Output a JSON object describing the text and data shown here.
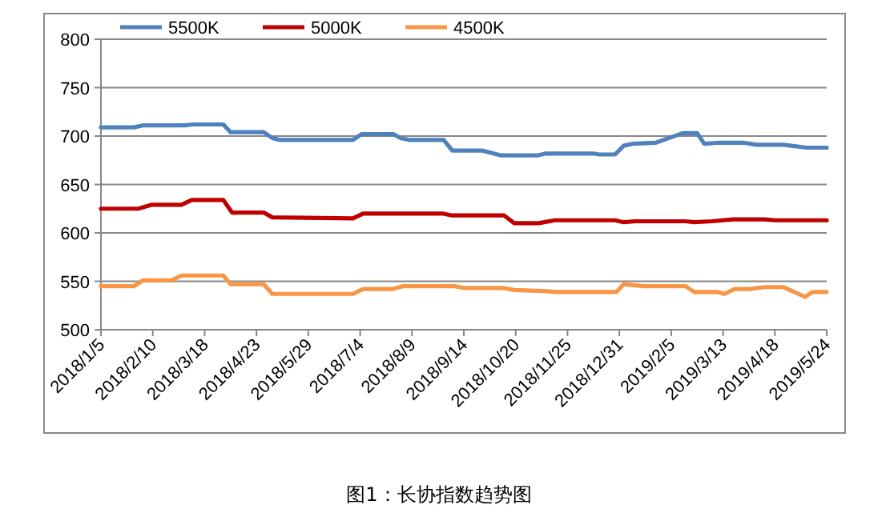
{
  "chart_data": {
    "type": "line",
    "annotations": [
      "图1：长协指数趋势图"
    ],
    "xlim": [
      "2018-01-05",
      "2019-05-24"
    ],
    "xticks": [
      {
        "value": "2018-01-05",
        "label": "2018/1/5"
      },
      {
        "value": "2018-02-10",
        "label": "2018/2/10"
      },
      {
        "value": "2018-03-18",
        "label": "2018/3/18"
      },
      {
        "value": "2018-04-23",
        "label": "2018/4/23"
      },
      {
        "value": "2018-05-29",
        "label": "2018/5/29"
      },
      {
        "value": "2018-07-04",
        "label": "2018/7/4"
      },
      {
        "value": "2018-08-09",
        "label": "2018/8/9"
      },
      {
        "value": "2018-09-14",
        "label": "2018/9/14"
      },
      {
        "value": "2018-10-20",
        "label": "2018/10/20"
      },
      {
        "value": "2018-11-25",
        "label": "2018/11/25"
      },
      {
        "value": "2018-12-31",
        "label": "2018/12/31"
      },
      {
        "value": "2019-02-05",
        "label": "2019/2/5"
      },
      {
        "value": "2019-03-13",
        "label": "2019/3/13"
      },
      {
        "value": "2019-04-18",
        "label": "2019/4/18"
      },
      {
        "value": "2019-05-24",
        "label": "2019/5/24"
      }
    ],
    "ylim": [
      500,
      800
    ],
    "yticks": [
      500,
      550,
      600,
      650,
      700,
      750,
      800
    ],
    "grid": "y",
    "legend": "top left",
    "marker": "none",
    "line_style": "solid",
    "series": [
      {
        "name": "5500K",
        "color": "#4f81bd",
        "x": [
          "2018-01-05",
          "2018-01-28",
          "2018-02-03",
          "2018-03-04",
          "2018-03-10",
          "2018-03-31",
          "2018-04-05",
          "2018-04-28",
          "2018-05-04",
          "2018-05-09",
          "2018-06-29",
          "2018-07-05",
          "2018-07-27",
          "2018-08-01",
          "2018-08-07",
          "2018-08-31",
          "2018-09-06",
          "2018-09-27",
          "2018-10-10",
          "2018-11-04",
          "2018-11-10",
          "2018-12-13",
          "2018-12-17",
          "2018-12-28",
          "2019-01-03",
          "2019-01-09",
          "2019-01-25",
          "2019-02-13",
          "2019-02-23",
          "2019-02-28",
          "2019-03-09",
          "2019-03-28",
          "2019-04-05",
          "2019-04-24",
          "2019-05-10",
          "2019-05-24"
        ],
        "values": [
          709,
          709,
          711,
          711,
          712,
          712,
          704,
          704,
          698,
          696,
          696,
          702,
          702,
          698,
          696,
          696,
          685,
          685,
          680,
          680,
          682,
          682,
          681,
          681,
          690,
          692,
          693,
          703,
          703,
          692,
          693,
          693,
          691,
          691,
          688,
          688
        ]
      },
      {
        "name": "5000K",
        "color": "#c00000",
        "x": [
          "2018-01-05",
          "2018-01-31",
          "2018-02-09",
          "2018-03-02",
          "2018-03-09",
          "2018-03-31",
          "2018-04-06",
          "2018-04-28",
          "2018-05-04",
          "2018-06-29",
          "2018-07-06",
          "2018-08-09",
          "2018-08-30",
          "2018-09-06",
          "2018-10-12",
          "2018-10-19",
          "2018-11-05",
          "2018-11-16",
          "2018-12-28",
          "2019-01-03",
          "2019-01-11",
          "2019-02-15",
          "2019-02-21",
          "2019-03-05",
          "2019-03-20",
          "2019-04-11",
          "2019-04-18",
          "2019-05-24"
        ],
        "values": [
          625,
          625,
          629,
          629,
          634,
          634,
          621,
          621,
          616,
          615,
          620,
          620,
          620,
          618,
          618,
          610,
          610,
          613,
          613,
          611,
          612,
          612,
          611,
          612,
          614,
          614,
          613,
          613
        ]
      },
      {
        "name": "4500K",
        "color": "#f79646",
        "x": [
          "2018-01-05",
          "2018-01-28",
          "2018-02-03",
          "2018-02-23",
          "2018-03-02",
          "2018-03-31",
          "2018-04-05",
          "2018-04-28",
          "2018-05-04",
          "2018-06-29",
          "2018-07-06",
          "2018-07-26",
          "2018-08-03",
          "2018-09-07",
          "2018-09-15",
          "2018-10-12",
          "2018-10-19",
          "2018-11-08",
          "2018-11-18",
          "2018-12-29",
          "2019-01-03",
          "2019-01-17",
          "2019-02-15",
          "2019-02-21",
          "2019-03-09",
          "2019-03-14",
          "2019-03-21",
          "2019-04-01",
          "2019-04-11",
          "2019-04-24",
          "2019-05-09",
          "2019-05-14",
          "2019-05-24"
        ],
        "values": [
          545,
          545,
          551,
          551,
          556,
          556,
          547,
          547,
          537,
          537,
          542,
          542,
          545,
          545,
          543,
          543,
          541,
          540,
          539,
          539,
          547,
          545,
          545,
          539,
          539,
          537,
          542,
          542,
          544,
          544,
          534,
          539,
          539
        ]
      }
    ]
  }
}
